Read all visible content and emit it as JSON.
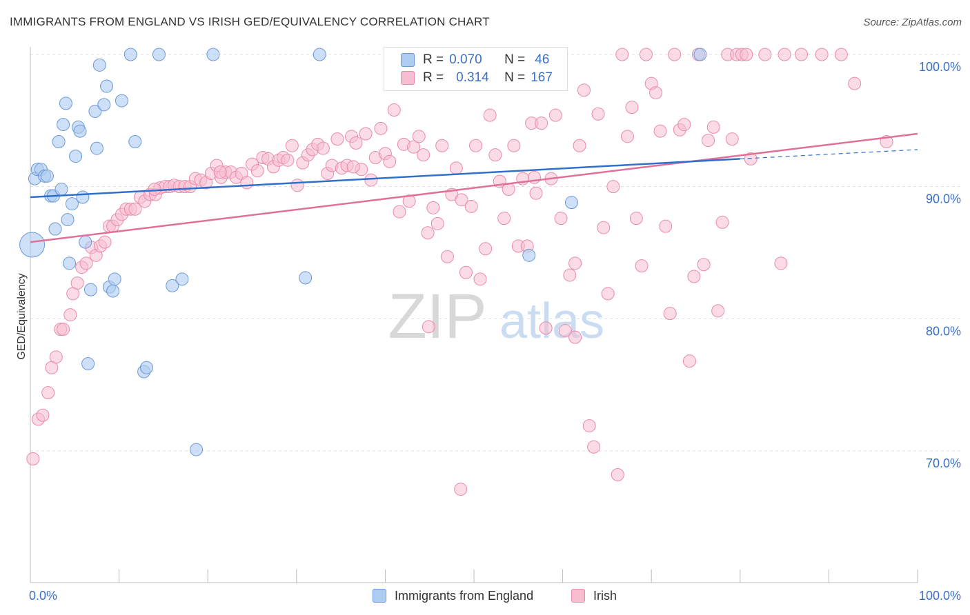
{
  "title": "IMMIGRANTS FROM ENGLAND VS IRISH GED/EQUIVALENCY CORRELATION CHART",
  "source": "Source: ZipAtlas.com",
  "watermark": {
    "zip": "ZIP",
    "atlas": "atlas"
  },
  "legend_top": [
    {
      "r_label": "R =",
      "r_value": "0.070",
      "n_label": "N =",
      "n_value": "46"
    },
    {
      "r_label": "R =",
      "r_value": "0.314",
      "n_label": "N =",
      "n_value": "167"
    }
  ],
  "legend_bottom": [
    "Immigrants from England",
    "Irish"
  ],
  "colors": {
    "blue_fill": "#aecbf2",
    "blue_stroke": "#6a98d8",
    "blue_line": "#2f6fcb",
    "pink_fill": "#f7bed0",
    "pink_stroke": "#e98aa9",
    "pink_line": "#e0709a",
    "tick_text": "#3a6fc4",
    "grid": "#dddddd"
  },
  "chart_data": {
    "type": "scatter",
    "title": "IMMIGRANTS FROM ENGLAND VS IRISH GED/EQUIVALENCY CORRELATION CHART",
    "xlabel": "",
    "ylabel": "GED/Equivalency",
    "xlim": [
      0,
      100
    ],
    "ylim": [
      60,
      100
    ],
    "x_tick_labels": [
      "0.0%",
      "100.0%"
    ],
    "y_ticks": [
      70,
      80,
      90,
      100
    ],
    "y_tick_labels": [
      "70.0%",
      "80.0%",
      "90.0%",
      "100.0%"
    ],
    "grid": "horizontal dashed",
    "legend_placement": "top-center and bottom",
    "series": [
      {
        "name": "Immigrants from England",
        "trend": {
          "x": [
            0,
            80
          ],
          "y": [
            89.2,
            92.1
          ],
          "dashed_to": [
            100,
            92.8
          ]
        },
        "points": [
          [
            0.2,
            85.6
          ],
          [
            0.5,
            90.6
          ],
          [
            0.8,
            91.3
          ],
          [
            1.2,
            91.3
          ],
          [
            1.6,
            90.8
          ],
          [
            1.9,
            90.8
          ],
          [
            2.3,
            89.3
          ],
          [
            2.6,
            89.3
          ],
          [
            2.8,
            86.8
          ],
          [
            3.2,
            93.4
          ],
          [
            3.5,
            89.8
          ],
          [
            3.7,
            94.7
          ],
          [
            4.0,
            96.3
          ],
          [
            4.2,
            87.5
          ],
          [
            4.4,
            84.2
          ],
          [
            4.7,
            88.7
          ],
          [
            5.1,
            92.3
          ],
          [
            5.4,
            94.5
          ],
          [
            5.6,
            94.2
          ],
          [
            5.9,
            89.2
          ],
          [
            6.2,
            85.8
          ],
          [
            6.5,
            76.6
          ],
          [
            6.8,
            82.2
          ],
          [
            7.3,
            95.7
          ],
          [
            7.5,
            92.9
          ],
          [
            7.8,
            99.2
          ],
          [
            8.3,
            96.2
          ],
          [
            8.6,
            97.6
          ],
          [
            8.9,
            82.4
          ],
          [
            9.3,
            82.1
          ],
          [
            9.5,
            83.0
          ],
          [
            10.3,
            96.5
          ],
          [
            11.3,
            100.0
          ],
          [
            11.8,
            93.4
          ],
          [
            12.8,
            76.0
          ],
          [
            13.1,
            76.3
          ],
          [
            14.5,
            100.0
          ],
          [
            16.0,
            82.5
          ],
          [
            17.1,
            83.0
          ],
          [
            18.7,
            70.1
          ],
          [
            20.6,
            100.0
          ],
          [
            31.0,
            83.1
          ],
          [
            32.6,
            100.0
          ],
          [
            56.2,
            84.8
          ],
          [
            75.5,
            100.0
          ],
          [
            61.0,
            88.8
          ]
        ],
        "sizes_large_index": 0
      },
      {
        "name": "Irish",
        "trend": {
          "x": [
            0,
            100
          ],
          "y": [
            85.8,
            94.0
          ]
        },
        "points": [
          [
            0.3,
            69.4
          ],
          [
            0.9,
            72.4
          ],
          [
            1.4,
            72.7
          ],
          [
            2.0,
            74.4
          ],
          [
            2.4,
            76.3
          ],
          [
            2.9,
            77.1
          ],
          [
            3.4,
            79.2
          ],
          [
            3.7,
            79.2
          ],
          [
            4.5,
            80.3
          ],
          [
            4.8,
            81.9
          ],
          [
            5.3,
            82.7
          ],
          [
            5.8,
            83.9
          ],
          [
            6.3,
            84.2
          ],
          [
            6.9,
            85.4
          ],
          [
            7.4,
            84.8
          ],
          [
            7.9,
            85.5
          ],
          [
            8.4,
            85.8
          ],
          [
            8.9,
            87.0
          ],
          [
            9.3,
            87.0
          ],
          [
            9.8,
            87.5
          ],
          [
            10.3,
            87.9
          ],
          [
            10.8,
            88.3
          ],
          [
            11.3,
            88.3
          ],
          [
            11.8,
            88.3
          ],
          [
            12.4,
            89.2
          ],
          [
            12.9,
            88.9
          ],
          [
            13.5,
            89.4
          ],
          [
            14.1,
            89.4
          ],
          [
            14.6,
            89.9
          ],
          [
            15.2,
            90.0
          ],
          [
            15.7,
            90.0
          ],
          [
            16.2,
            90.1
          ],
          [
            16.8,
            90.0
          ],
          [
            17.4,
            90.0
          ],
          [
            18.0,
            90.0
          ],
          [
            18.6,
            90.6
          ],
          [
            19.2,
            90.5
          ],
          [
            19.8,
            90.3
          ],
          [
            20.4,
            91.0
          ],
          [
            21.0,
            91.6
          ],
          [
            21.5,
            90.7
          ],
          [
            22.0,
            91.1
          ],
          [
            22.6,
            91.1
          ],
          [
            23.2,
            90.7
          ],
          [
            23.8,
            91.0
          ],
          [
            24.4,
            90.3
          ],
          [
            25.0,
            91.7
          ],
          [
            25.6,
            91.2
          ],
          [
            26.2,
            92.2
          ],
          [
            26.8,
            92.1
          ],
          [
            27.4,
            91.5
          ],
          [
            28.0,
            92.0
          ],
          [
            28.5,
            92.2
          ],
          [
            29.0,
            92.0
          ],
          [
            29.5,
            93.1
          ],
          [
            30.1,
            90.1
          ],
          [
            30.7,
            91.8
          ],
          [
            31.3,
            92.4
          ],
          [
            31.8,
            92.8
          ],
          [
            32.4,
            93.2
          ],
          [
            33.0,
            92.9
          ],
          [
            33.5,
            91.0
          ],
          [
            34.0,
            91.6
          ],
          [
            34.6,
            93.6
          ],
          [
            35.1,
            91.4
          ],
          [
            35.7,
            91.6
          ],
          [
            36.2,
            93.8
          ],
          [
            36.7,
            93.3
          ],
          [
            37.3,
            91.3
          ],
          [
            37.8,
            94.0
          ],
          [
            38.4,
            90.5
          ],
          [
            38.9,
            92.2
          ],
          [
            39.5,
            94.4
          ],
          [
            40.0,
            92.5
          ],
          [
            40.5,
            91.9
          ],
          [
            41.0,
            95.8
          ],
          [
            41.6,
            88.1
          ],
          [
            42.1,
            93.2
          ],
          [
            42.7,
            88.9
          ],
          [
            43.2,
            93.0
          ],
          [
            43.8,
            93.8
          ],
          [
            44.3,
            92.4
          ],
          [
            44.8,
            86.5
          ],
          [
            45.4,
            88.4
          ],
          [
            45.9,
            87.2
          ],
          [
            46.4,
            93.1
          ],
          [
            47.0,
            84.7
          ],
          [
            47.5,
            89.4
          ],
          [
            48.0,
            91.4
          ],
          [
            48.6,
            89.0
          ],
          [
            49.1,
            83.5
          ],
          [
            49.7,
            88.5
          ],
          [
            50.2,
            93.1
          ],
          [
            50.7,
            83.0
          ],
          [
            51.3,
            85.3
          ],
          [
            51.8,
            95.4
          ],
          [
            52.4,
            92.4
          ],
          [
            52.9,
            90.4
          ],
          [
            53.4,
            87.6
          ],
          [
            53.9,
            89.8
          ],
          [
            54.5,
            93.1
          ],
          [
            55.0,
            85.5
          ],
          [
            55.5,
            90.6
          ],
          [
            56.0,
            85.5
          ],
          [
            56.5,
            94.8
          ],
          [
            57.0,
            89.5
          ],
          [
            57.6,
            94.8
          ],
          [
            58.1,
            79.3
          ],
          [
            58.7,
            90.6
          ],
          [
            59.2,
            95.4
          ],
          [
            59.8,
            87.6
          ],
          [
            60.3,
            79.1
          ],
          [
            60.8,
            83.3
          ],
          [
            61.4,
            78.6
          ],
          [
            61.9,
            93.1
          ],
          [
            62.4,
            97.3
          ],
          [
            63.0,
            71.9
          ],
          [
            63.5,
            70.3
          ],
          [
            64.0,
            95.5
          ],
          [
            64.6,
            86.9
          ],
          [
            65.1,
            81.9
          ],
          [
            65.7,
            90.0
          ],
          [
            66.2,
            68.2
          ],
          [
            66.7,
            100.0
          ],
          [
            67.3,
            93.8
          ],
          [
            67.8,
            96.0
          ],
          [
            68.3,
            87.6
          ],
          [
            68.9,
            84.0
          ],
          [
            69.4,
            100.0
          ],
          [
            70.0,
            97.8
          ],
          [
            70.5,
            97.1
          ],
          [
            71.0,
            94.2
          ],
          [
            71.6,
            87.0
          ],
          [
            72.1,
            80.4
          ],
          [
            72.6,
            100.0
          ],
          [
            73.2,
            94.3
          ],
          [
            73.7,
            94.7
          ],
          [
            74.3,
            76.8
          ],
          [
            74.8,
            83.2
          ],
          [
            75.3,
            100.0
          ],
          [
            75.9,
            84.1
          ],
          [
            76.4,
            93.5
          ],
          [
            77.0,
            94.5
          ],
          [
            77.5,
            80.6
          ],
          [
            78.0,
            87.3
          ],
          [
            78.6,
            100.0
          ],
          [
            79.1,
            93.6
          ],
          [
            79.6,
            100.0
          ],
          [
            80.2,
            100.0
          ],
          [
            80.7,
            100.0
          ],
          [
            81.2,
            92.1
          ],
          [
            82.8,
            100.0
          ],
          [
            84.6,
            84.2
          ],
          [
            85.0,
            100.0
          ],
          [
            86.9,
            100.0
          ],
          [
            89.2,
            100.0
          ],
          [
            91.4,
            100.0
          ],
          [
            92.9,
            97.8
          ],
          [
            96.5,
            93.4
          ],
          [
            14.0,
            89.8
          ],
          [
            21.4,
            91.1
          ],
          [
            36.4,
            91.5
          ],
          [
            48.5,
            67.1
          ],
          [
            44.9,
            79.4
          ],
          [
            56.8,
            90.7
          ],
          [
            61.4,
            84.2
          ],
          [
            54.4,
            100.0
          ]
        ]
      }
    ]
  }
}
